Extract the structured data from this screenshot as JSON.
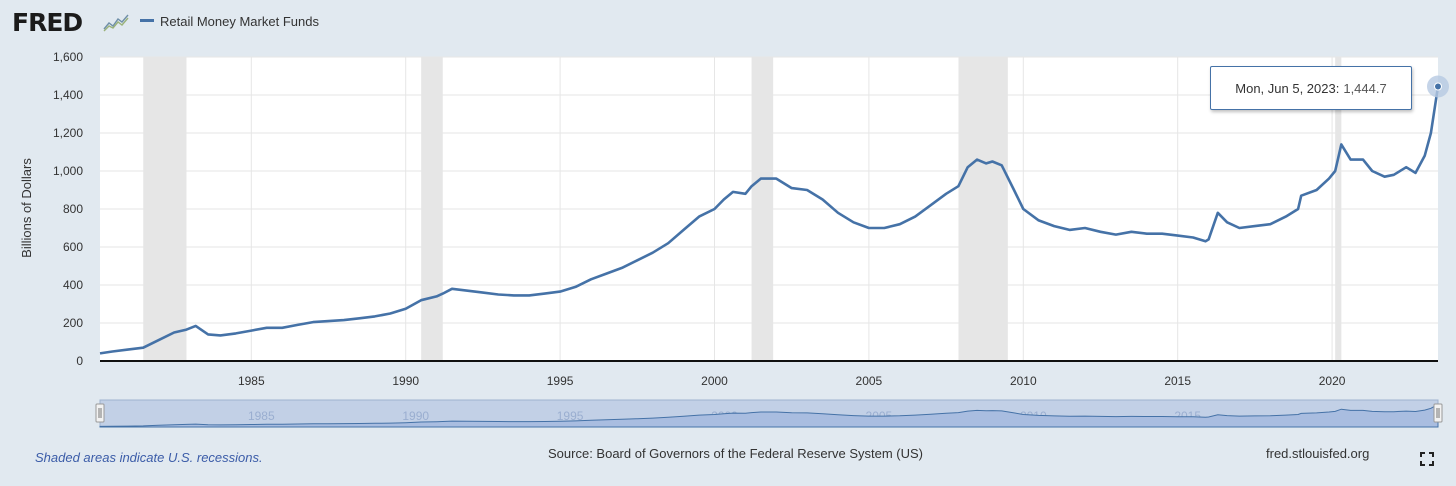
{
  "header": {
    "logo_text": "FRED",
    "legend_label": "Retail Money Market Funds"
  },
  "colors": {
    "series": "#4572a7",
    "recession": "#e6e6e6",
    "background": "#e1e9f0"
  },
  "tooltip": {
    "date": "Mon, Jun 5, 2023:",
    "value": "1,444.7"
  },
  "footer": {
    "note": "Shaded areas indicate U.S. recessions.",
    "source": "Source: Board of Governors of the Federal Reserve System (US)",
    "site": "fred.stlouisfed.org"
  },
  "chart_data": {
    "type": "line",
    "ylabel": "Billions of Dollars",
    "ylim": [
      0,
      1600
    ],
    "xlim": [
      1980.1,
      2023.43
    ],
    "yticks": [
      0,
      200,
      400,
      600,
      800,
      1000,
      1200,
      1400,
      1600
    ],
    "ytick_labels": [
      "0",
      "200",
      "400",
      "600",
      "800",
      "1,000",
      "1,200",
      "1,400",
      "1,600"
    ],
    "xticks": [
      1985,
      1990,
      1995,
      2000,
      2005,
      2010,
      2015,
      2020
    ],
    "xtick_labels": [
      "1985",
      "1990",
      "1995",
      "2000",
      "2005",
      "2010",
      "2015",
      "2020"
    ],
    "grid": true,
    "recessions": [
      [
        1981.5,
        1982.9
      ],
      [
        1990.5,
        1991.2
      ],
      [
        2001.2,
        2001.9
      ],
      [
        2007.9,
        2009.5
      ],
      [
        2020.1,
        2020.3
      ]
    ],
    "series": [
      {
        "name": "Retail Money Market Funds",
        "x": [
          1980.1,
          1980.5,
          1981.0,
          1981.5,
          1982.0,
          1982.5,
          1982.9,
          1983.2,
          1983.6,
          1984.0,
          1984.5,
          1985.0,
          1985.5,
          1986.0,
          1986.5,
          1987.0,
          1987.5,
          1988.0,
          1988.5,
          1989.0,
          1989.5,
          1990.0,
          1990.5,
          1991.0,
          1991.2,
          1991.5,
          1992.0,
          1992.5,
          1993.0,
          1993.5,
          1994.0,
          1994.5,
          1995.0,
          1995.5,
          1996.0,
          1996.5,
          1997.0,
          1997.5,
          1998.0,
          1998.5,
          1999.0,
          1999.5,
          2000.0,
          2000.3,
          2000.6,
          2001.0,
          2001.2,
          2001.5,
          2002.0,
          2002.5,
          2003.0,
          2003.5,
          2004.0,
          2004.5,
          2005.0,
          2005.5,
          2006.0,
          2006.5,
          2007.0,
          2007.5,
          2007.9,
          2008.2,
          2008.5,
          2008.8,
          2009.0,
          2009.3,
          2009.7,
          2010.0,
          2010.5,
          2011.0,
          2011.5,
          2012.0,
          2012.5,
          2013.0,
          2013.5,
          2014.0,
          2014.5,
          2015.0,
          2015.5,
          2015.9,
          2016.0,
          2016.3,
          2016.6,
          2017.0,
          2017.5,
          2018.0,
          2018.5,
          2018.9,
          2019.0,
          2019.5,
          2019.9,
          2020.1,
          2020.3,
          2020.6,
          2021.0,
          2021.3,
          2021.7,
          2022.0,
          2022.4,
          2022.7,
          2023.0,
          2023.2,
          2023.43
        ],
        "values": [
          40,
          50,
          60,
          70,
          110,
          150,
          165,
          185,
          140,
          135,
          145,
          160,
          175,
          175,
          190,
          205,
          210,
          215,
          225,
          235,
          250,
          275,
          320,
          340,
          355,
          380,
          370,
          360,
          350,
          345,
          345,
          355,
          365,
          390,
          430,
          460,
          490,
          530,
          570,
          620,
          690,
          760,
          800,
          850,
          890,
          880,
          920,
          960,
          960,
          910,
          900,
          850,
          780,
          730,
          700,
          700,
          720,
          760,
          820,
          880,
          920,
          1020,
          1060,
          1040,
          1050,
          1030,
          900,
          800,
          740,
          710,
          690,
          700,
          680,
          665,
          680,
          670,
          670,
          660,
          650,
          630,
          640,
          780,
          730,
          700,
          710,
          720,
          760,
          800,
          870,
          900,
          960,
          1000,
          1140,
          1060,
          1060,
          1000,
          970,
          980,
          1020,
          990,
          1080,
          1200,
          1444.7
        ]
      }
    ]
  }
}
